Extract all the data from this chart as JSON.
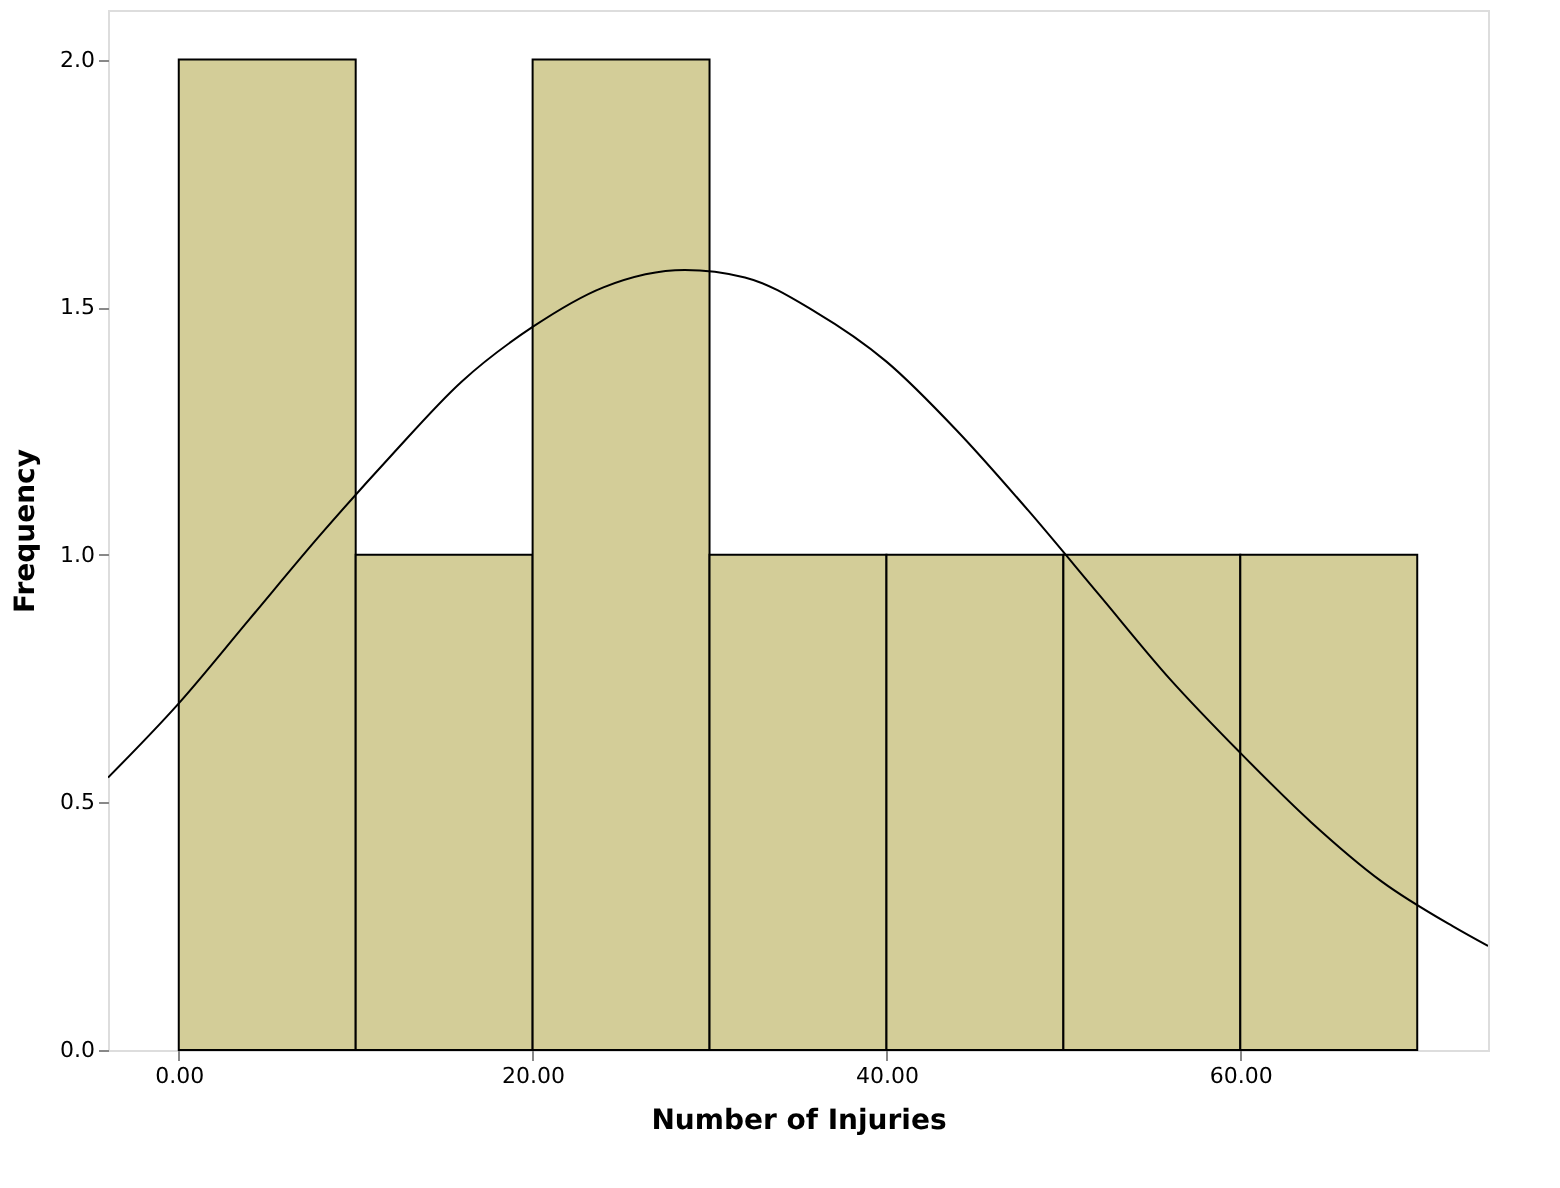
{
  "chart_data": {
    "type": "histogram",
    "xlabel": "Number of Injuries",
    "ylabel": "Frequency",
    "bins": [
      0,
      10,
      20,
      30,
      40,
      50,
      60,
      70
    ],
    "values": [
      2,
      1,
      2,
      1,
      1,
      1,
      1
    ],
    "color": "#d3cd98",
    "series": [
      {
        "type": "line",
        "color": "#000000",
        "x": [
          -4,
          0,
          4,
          8,
          12,
          16,
          20,
          24,
          28.6,
          32,
          36,
          40,
          44,
          48,
          52,
          56,
          60,
          64,
          68,
          72,
          74
        ],
        "values": [
          0.55,
          0.7,
          0.87,
          1.04,
          1.2,
          1.35,
          1.46,
          1.54,
          1.575,
          1.56,
          1.49,
          1.39,
          1.25,
          1.09,
          0.92,
          0.75,
          0.6,
          0.46,
          0.34,
          0.25,
          0.21
        ]
      }
    ],
    "xlim": [
      -4,
      74
    ],
    "ylim": [
      0,
      2.1
    ],
    "xticks": [
      {
        "value": 0,
        "label": "0.00"
      },
      {
        "value": 20,
        "label": "20.00"
      },
      {
        "value": 40,
        "label": "40.00"
      },
      {
        "value": 60,
        "label": "60.00"
      }
    ],
    "yticks": [
      {
        "value": 0,
        "label": "0.0"
      },
      {
        "value": 0.5,
        "label": "0.5"
      },
      {
        "value": 1,
        "label": "1.0"
      },
      {
        "value": 1.5,
        "label": "1.5"
      },
      {
        "value": 2,
        "label": "2.0"
      }
    ],
    "grid": false
  }
}
